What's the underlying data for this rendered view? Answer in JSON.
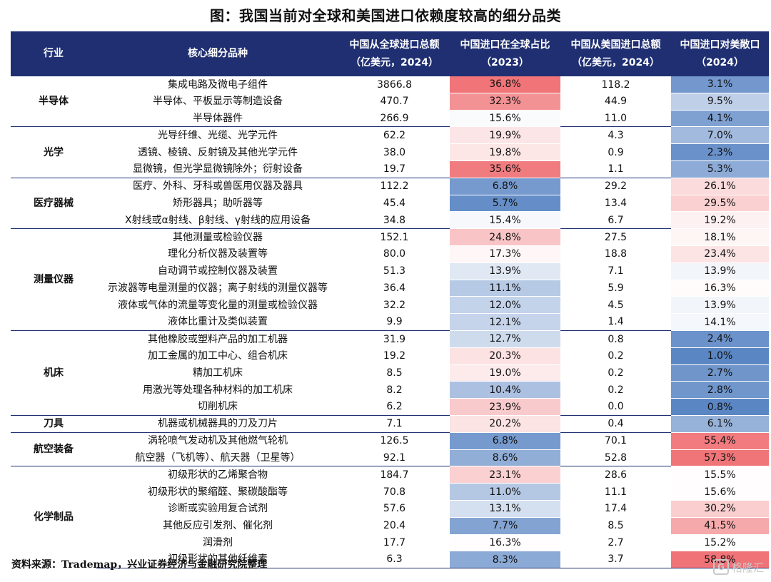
{
  "title": "图：我国当前对全球和美国进口依赖度较高的细分品类",
  "headers": [
    {
      "l1": "行业",
      "l2": ""
    },
    {
      "l1": "核心细分品种",
      "l2": ""
    },
    {
      "l1": "中国从全球进口总额",
      "l2": "（亿美元，2024）"
    },
    {
      "l1": "中国进口在全球占比",
      "l2": "（2023）"
    },
    {
      "l1": "中国从美国进口总额",
      "l2": "（亿美元，2024）"
    },
    {
      "l1": "中国进口对美敞口",
      "l2": "（2024）"
    }
  ],
  "groups": [
    {
      "industry": "半导体",
      "rows": [
        {
          "item": "集成电路及微电子组件",
          "global": "3866.8",
          "share": "36.8%",
          "us": "118.2",
          "exposure": "3.1%"
        },
        {
          "item": "半导体、平板显示等制造设备",
          "global": "470.7",
          "share": "32.3%",
          "us": "44.9",
          "exposure": "9.5%"
        },
        {
          "item": "半导体器件",
          "global": "266.9",
          "share": "15.6%",
          "us": "11.0",
          "exposure": "4.1%"
        }
      ]
    },
    {
      "industry": "光学",
      "rows": [
        {
          "item": "光导纤维、光缆、光学元件",
          "global": "62.2",
          "share": "19.9%",
          "us": "4.3",
          "exposure": "7.0%"
        },
        {
          "item": "透镜、棱镜、反射镜及其他光学元件",
          "global": "38.0",
          "share": "19.8%",
          "us": "0.9",
          "exposure": "2.3%"
        },
        {
          "item": "显微镜，但光学显微镜除外；衍射设备",
          "global": "19.7",
          "share": "35.6%",
          "us": "1.1",
          "exposure": "5.3%"
        }
      ]
    },
    {
      "industry": "医疗器械",
      "rows": [
        {
          "item": "医疗、外科、牙科或兽医用仪器及器具",
          "global": "112.2",
          "share": "6.8%",
          "us": "29.2",
          "exposure": "26.1%"
        },
        {
          "item": "矫形器具；助听器等",
          "global": "45.4",
          "share": "5.7%",
          "us": "13.4",
          "exposure": "29.5%"
        },
        {
          "item": "X射线或α射线、β射线、γ射线的应用设备",
          "global": "34.8",
          "share": "15.4%",
          "us": "6.7",
          "exposure": "19.2%"
        }
      ]
    },
    {
      "industry": "测量仪器",
      "rows": [
        {
          "item": "其他测量或检验仪器",
          "global": "152.1",
          "share": "24.8%",
          "us": "27.5",
          "exposure": "18.1%"
        },
        {
          "item": "理化分析仪器及装置等",
          "global": "80.0",
          "share": "17.3%",
          "us": "18.8",
          "exposure": "23.4%"
        },
        {
          "item": "自动调节或控制仪器及装置",
          "global": "51.3",
          "share": "13.9%",
          "us": "7.1",
          "exposure": "13.9%"
        },
        {
          "item": "示波器等电量测量的仪器；离子射线的测量仪器等",
          "global": "36.4",
          "share": "11.1%",
          "us": "5.9",
          "exposure": "16.3%"
        },
        {
          "item": "液体或气体的流量等变化量的测量或检验仪器",
          "global": "32.2",
          "share": "12.0%",
          "us": "4.5",
          "exposure": "13.9%"
        },
        {
          "item": "液体比重计及类似装置",
          "global": "9.9",
          "share": "12.1%",
          "us": "1.4",
          "exposure": "14.1%"
        }
      ]
    },
    {
      "industry": "机床",
      "rows": [
        {
          "item": "其他橡胶或塑料产品的加工机器",
          "global": "31.9",
          "share": "12.7%",
          "us": "0.8",
          "exposure": "2.4%"
        },
        {
          "item": "加工金属的加工中心、组合机床",
          "global": "19.2",
          "share": "20.3%",
          "us": "0.2",
          "exposure": "1.0%"
        },
        {
          "item": "精加工机床",
          "global": "8.5",
          "share": "19.0%",
          "us": "0.2",
          "exposure": "2.7%"
        },
        {
          "item": "用激光等处理各种材料的加工机床",
          "global": "8.2",
          "share": "10.4%",
          "us": "0.2",
          "exposure": "2.8%"
        },
        {
          "item": "切削机床",
          "global": "6.2",
          "share": "23.9%",
          "us": "0.0",
          "exposure": "0.8%"
        }
      ]
    },
    {
      "industry": "刀具",
      "rows": [
        {
          "item": "机器或机械器具的刀及刀片",
          "global": "7.1",
          "share": "20.2%",
          "us": "0.4",
          "exposure": "6.1%"
        }
      ]
    },
    {
      "industry": "航空装备",
      "rows": [
        {
          "item": "涡轮喷气发动机及其他燃气轮机",
          "global": "126.5",
          "share": "6.8%",
          "us": "70.1",
          "exposure": "55.4%"
        },
        {
          "item": "航空器（飞机等）、航天器（卫星等）",
          "global": "92.1",
          "share": "8.6%",
          "us": "52.8",
          "exposure": "57.3%"
        }
      ]
    },
    {
      "industry": "化学制品",
      "rows": [
        {
          "item": "初级形状的乙烯聚合物",
          "global": "184.7",
          "share": "23.1%",
          "us": "28.6",
          "exposure": "15.5%"
        },
        {
          "item": "初级形状的聚缩醛、聚碳酸酯等",
          "global": "70.8",
          "share": "11.0%",
          "us": "11.1",
          "exposure": "15.6%"
        },
        {
          "item": "诊断或实验用复合试剂",
          "global": "57.6",
          "share": "13.1%",
          "us": "17.4",
          "exposure": "30.2%"
        },
        {
          "item": "其他反应引发剂、催化剂",
          "global": "20.4",
          "share": "7.7%",
          "us": "8.5",
          "exposure": "41.5%"
        },
        {
          "item": "润滑剂",
          "global": "17.7",
          "share": "16.3%",
          "us": "2.7",
          "exposure": "15.2%"
        },
        {
          "item": "初级形状的其他纤维素",
          "global": "6.3",
          "share": "8.3%",
          "us": "3.7",
          "exposure": "58.8%"
        }
      ]
    }
  ],
  "colors": {
    "header_bg": "#1f2f72",
    "high": "#f07377",
    "mid": "#ffffff",
    "low": "#5b86c4"
  },
  "source": "资料来源：Trademap，兴业证券经济与金融研究院整理",
  "watermark": "格隆汇"
}
